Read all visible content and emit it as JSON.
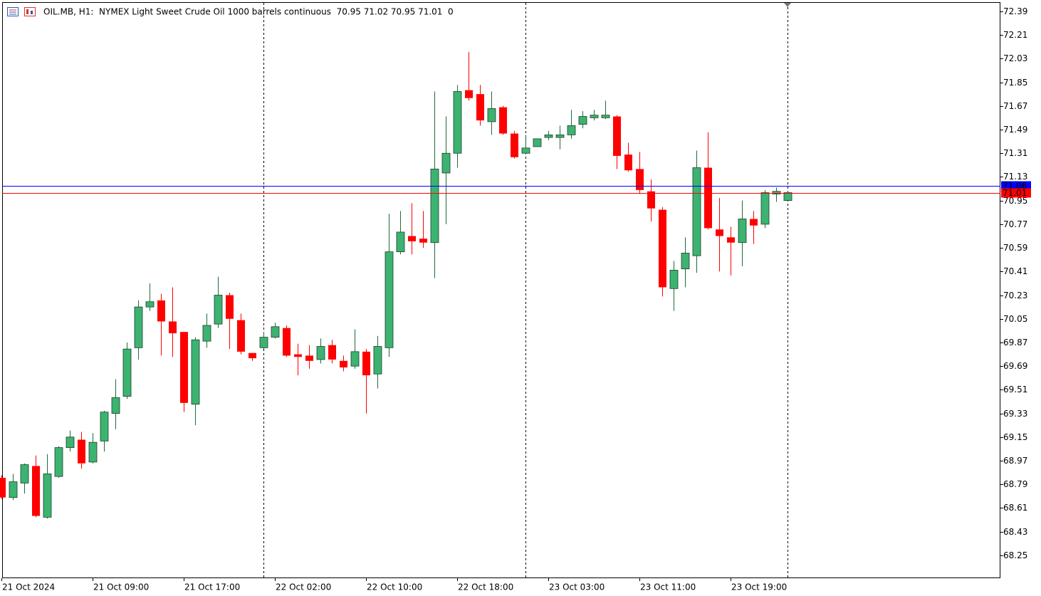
{
  "chart_data": {
    "type": "candlestick",
    "title": "OIL.MB, H1:  NYMEX Light Sweet Crude Oil 1000 barrels continuous  70.95 71.02 70.95 71.01  0",
    "categories": [
      "21 Oct 2024",
      null,
      null,
      null,
      null,
      null,
      null,
      null,
      "21 Oct 09:00",
      null,
      null,
      null,
      null,
      null,
      null,
      null,
      "21 Oct 17:00",
      null,
      null,
      null,
      null,
      null,
      null,
      null,
      "22 Oct 02:00",
      null,
      null,
      null,
      null,
      null,
      null,
      null,
      "22 Oct 10:00",
      null,
      null,
      null,
      null,
      null,
      null,
      null,
      "22 Oct 18:00",
      null,
      null,
      null,
      null,
      null,
      null,
      null,
      "23 Oct 03:00",
      null,
      null,
      null,
      null,
      null,
      null,
      null,
      "23 Oct 11:00",
      null,
      null,
      null,
      null,
      null,
      null,
      null,
      "23 Oct 19:00",
      null,
      null,
      null,
      null,
      null
    ],
    "open": [
      68.84,
      68.69,
      68.8,
      68.93,
      68.54,
      68.85,
      69.07,
      69.13,
      68.96,
      69.12,
      69.33,
      69.46,
      69.83,
      70.14,
      70.19,
      70.03,
      69.95,
      69.4,
      69.88,
      70.01,
      70.23,
      70.04,
      69.79,
      69.83,
      69.91,
      69.98,
      69.78,
      69.77,
      69.74,
      69.85,
      69.73,
      69.69,
      69.8,
      69.63,
      69.83,
      70.56,
      70.68,
      70.66,
      70.63,
      71.16,
      71.31,
      71.79,
      71.76,
      71.55,
      71.66,
      71.46,
      71.31,
      71.36,
      71.43,
      71.43,
      71.45,
      71.53,
      71.58,
      71.58,
      71.59,
      71.3,
      71.19,
      71.02,
      70.88,
      70.28,
      70.43,
      70.53,
      71.2,
      70.73,
      70.67,
      70.63,
      70.81,
      70.77,
      71.0,
      70.95
    ],
    "high": [
      68.86,
      68.87,
      68.95,
      69.01,
      69.02,
      69.08,
      69.2,
      69.19,
      69.18,
      69.35,
      69.59,
      69.87,
      70.19,
      70.32,
      70.24,
      70.29,
      69.95,
      69.91,
      70.09,
      70.37,
      70.25,
      70.09,
      69.79,
      69.95,
      70.02,
      70.0,
      69.86,
      69.85,
      69.9,
      69.89,
      69.77,
      69.97,
      69.82,
      69.92,
      70.85,
      70.87,
      70.93,
      70.87,
      71.78,
      71.59,
      71.83,
      72.08,
      71.83,
      71.78,
      71.67,
      71.48,
      71.44,
      71.42,
      71.48,
      71.52,
      71.64,
      71.63,
      71.64,
      71.71,
      71.6,
      71.39,
      71.32,
      71.11,
      70.9,
      70.49,
      70.67,
      71.33,
      71.47,
      70.97,
      70.75,
      70.95,
      70.87,
      71.03,
      71.05,
      71.02
    ],
    "low": [
      68.68,
      68.67,
      68.72,
      68.54,
      68.53,
      68.84,
      69.04,
      68.91,
      68.95,
      69.04,
      69.21,
      69.44,
      69.74,
      70.11,
      69.77,
      69.76,
      69.34,
      69.24,
      69.83,
      69.98,
      69.82,
      69.78,
      69.73,
      69.82,
      69.9,
      69.76,
      69.62,
      69.67,
      69.71,
      69.71,
      69.65,
      69.67,
      69.33,
      69.52,
      69.76,
      70.54,
      70.54,
      70.59,
      70.36,
      70.77,
      71.2,
      71.71,
      71.52,
      71.45,
      71.45,
      71.27,
      71.3,
      71.36,
      71.41,
      71.34,
      71.42,
      71.5,
      71.56,
      71.57,
      71.19,
      71.17,
      71.0,
      70.79,
      70.22,
      70.11,
      70.29,
      70.4,
      70.73,
      70.41,
      70.38,
      70.45,
      70.62,
      70.74,
      70.94,
      70.95
    ],
    "close": [
      68.69,
      68.81,
      68.94,
      68.55,
      68.87,
      69.07,
      69.15,
      68.95,
      69.11,
      69.34,
      69.45,
      69.82,
      70.14,
      70.18,
      70.03,
      69.94,
      69.41,
      69.89,
      70.0,
      70.23,
      70.05,
      69.8,
      69.75,
      69.91,
      69.99,
      69.77,
      69.76,
      69.73,
      69.84,
      69.74,
      69.68,
      69.8,
      69.62,
      69.84,
      70.56,
      70.71,
      70.64,
      70.63,
      71.19,
      71.31,
      71.78,
      71.73,
      71.56,
      71.65,
      71.46,
      71.28,
      71.35,
      71.42,
      71.45,
      71.45,
      71.52,
      71.59,
      71.6,
      71.6,
      71.29,
      71.18,
      71.03,
      70.89,
      70.29,
      70.42,
      70.55,
      71.2,
      70.74,
      70.68,
      70.63,
      70.81,
      70.76,
      71.01,
      71.02,
      71.01
    ],
    "up_color": "#3cb371",
    "down_color": "#ff0000",
    "price_lines": [
      {
        "value": 71.06,
        "color": "#0000ff"
      },
      {
        "value": 71.01,
        "color": "#ff0000"
      }
    ],
    "ylim": [
      68.076,
      72.46
    ],
    "yticks": [
      72.39,
      72.21,
      72.03,
      71.85,
      71.67,
      71.49,
      71.31,
      71.13,
      70.95,
      70.77,
      70.59,
      70.41,
      70.23,
      70.05,
      69.87,
      69.69,
      69.51,
      69.33,
      69.15,
      68.97,
      68.79,
      68.61,
      68.43,
      68.25
    ],
    "grid": false
  }
}
